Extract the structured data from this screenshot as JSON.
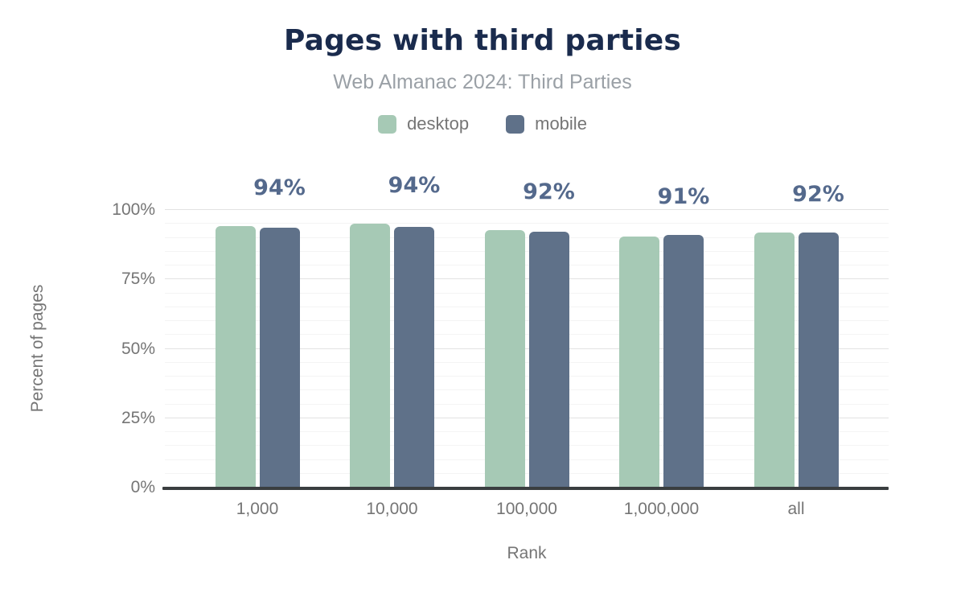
{
  "chart_data": {
    "type": "bar",
    "title": "Pages with third parties",
    "subtitle": "Web Almanac 2024: Third Parties",
    "xlabel": "Rank",
    "ylabel": "Percent of pages",
    "categories": [
      "1,000",
      "10,000",
      "100,000",
      "1,000,000",
      "all"
    ],
    "series": [
      {
        "name": "desktop",
        "values": [
          94.1,
          95.0,
          92.7,
          90.5,
          91.9
        ]
      },
      {
        "name": "mobile",
        "values": [
          93.6,
          93.9,
          92.1,
          90.9,
          92.0
        ]
      }
    ],
    "bar_labels": [
      "94%",
      "94%",
      "92%",
      "91%",
      "92%"
    ],
    "ylim": [
      0,
      100
    ],
    "ytick_values": [
      0,
      25,
      50,
      75,
      100
    ],
    "ytick_labels": [
      "0%",
      "25%",
      "50%",
      "75%",
      "100%"
    ],
    "grid": {
      "orientation": "horizontal",
      "minor_step": 5,
      "major_step": 25
    },
    "legend_position": "top",
    "legend": [
      {
        "label": "desktop"
      },
      {
        "label": "mobile"
      }
    ]
  },
  "colors": {
    "background": "#ffffff",
    "title": "#1a2b4d",
    "subtitle": "#9aa0a6",
    "axis_text": "#757575",
    "data_label": "#54698c",
    "desktop": "#a6c9b5",
    "mobile": "#5f7189",
    "grid_major": "#e2e2e2",
    "grid_minor": "#f4f4f4",
    "axis_line": "#3a3e40"
  }
}
